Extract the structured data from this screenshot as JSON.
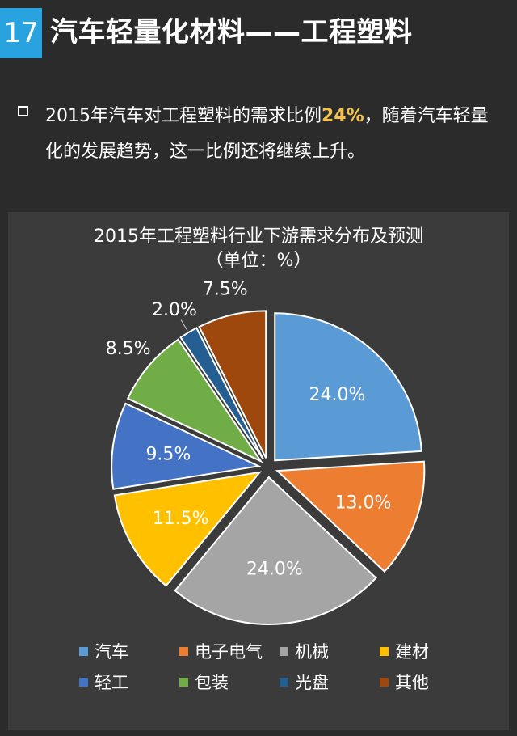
{
  "header": {
    "number": "17",
    "title": "汽车轻量化材料——工程塑料"
  },
  "bullet": {
    "text_before": "2015年汽车对工程塑料的需求比例",
    "highlight": "24%",
    "text_after": "，随着汽车轻量化的发展趋势，这一比例还将继续上升。",
    "highlight_color": "#f2c14e"
  },
  "chart_data": {
    "type": "pie",
    "title": "2015年工程塑料行业下游需求分布及预测",
    "subtitle": "（单位：%）",
    "series": [
      {
        "name": "汽车",
        "value": 24.0,
        "label": "24.0%",
        "color": "#5b9bd5"
      },
      {
        "name": "电子电气",
        "value": 13.0,
        "label": "13.0%",
        "color": "#ed7d31"
      },
      {
        "name": "机械",
        "value": 24.0,
        "label": "24.0%",
        "color": "#a5a5a5"
      },
      {
        "name": "建材",
        "value": 11.5,
        "label": "11.5%",
        "color": "#ffc000"
      },
      {
        "name": "轻工",
        "value": 9.5,
        "label": "9.5%",
        "color": "#4472c4"
      },
      {
        "name": "包装",
        "value": 8.5,
        "label": "8.5%",
        "color": "#70ad47"
      },
      {
        "name": "光盘",
        "value": 2.0,
        "label": "2.0%",
        "color": "#255e91"
      },
      {
        "name": "其他",
        "value": 7.5,
        "label": "7.5%",
        "color": "#9e480e"
      }
    ],
    "legend_position": "bottom"
  }
}
